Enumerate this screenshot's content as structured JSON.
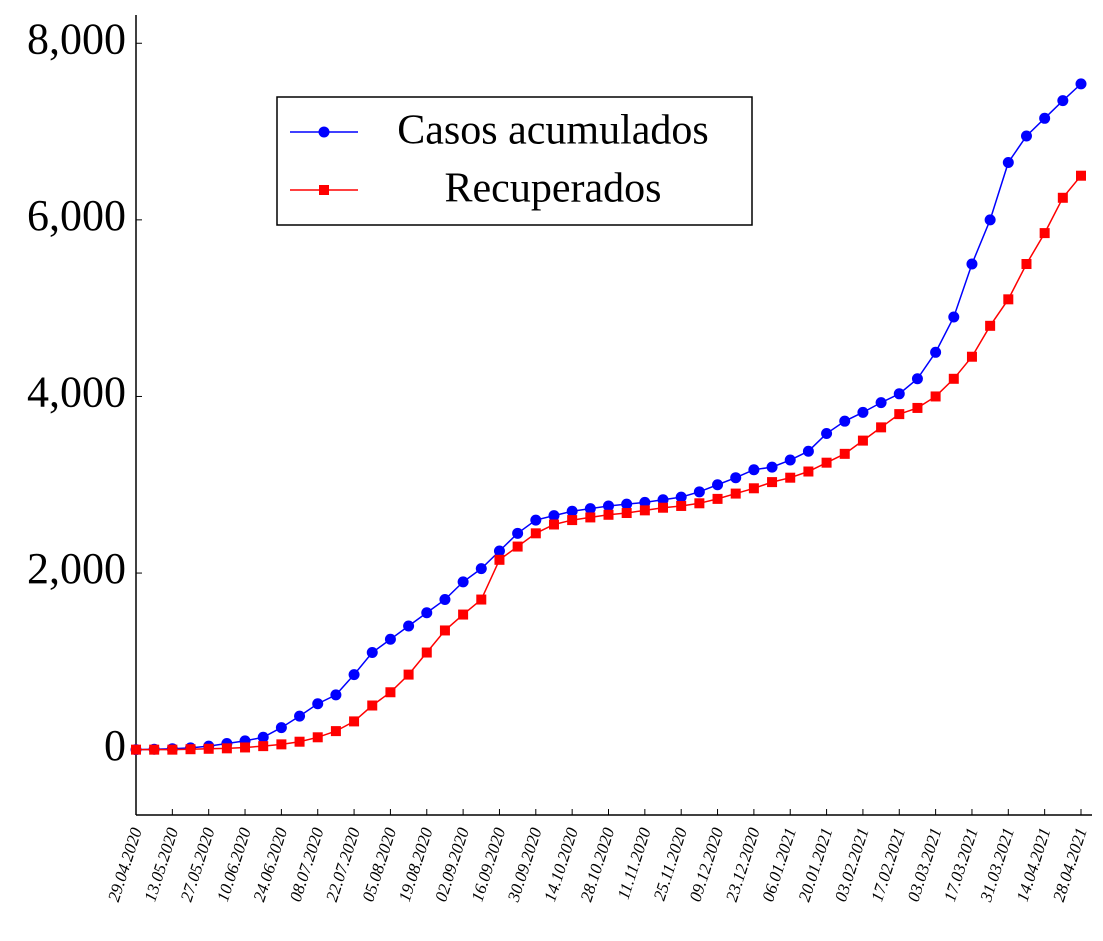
{
  "chart_data": {
    "type": "line",
    "categories": [
      "29.04.2020",
      null,
      "13.05.2020",
      null,
      "27.05.2020",
      null,
      "10.06.2020",
      null,
      "24.06.2020",
      null,
      "08.07.2020",
      null,
      "22.07.2020",
      null,
      "05.08.2020",
      null,
      "19.08.2020",
      null,
      "02.09.2020",
      null,
      "16.09.2020",
      null,
      "30.09.2020",
      null,
      "14.10.2020",
      null,
      "28.10.2020",
      null,
      "11.11.2020",
      null,
      "25.11.2020",
      null,
      "09.12.2020",
      null,
      "23.12.2020",
      null,
      "06.01.2021",
      null,
      "20.01.2021",
      null,
      "03.02.2021",
      null,
      "17.02.2021",
      null,
      "03.03.2021",
      null,
      "17.03.2021",
      null,
      "31.03.2021",
      null,
      "14.04.2021",
      null,
      "28.04.2021"
    ],
    "series": [
      {
        "name": "Casos acumulados",
        "color": "#0000ff",
        "marker": "circle",
        "values": [
          0,
          5,
          10,
          20,
          40,
          70,
          100,
          140,
          250,
          380,
          520,
          620,
          850,
          1100,
          1250,
          1400,
          1550,
          1700,
          1900,
          2050,
          2250,
          2450,
          2600,
          2650,
          2700,
          2730,
          2760,
          2780,
          2800,
          2830,
          2860,
          2920,
          3000,
          3080,
          3170,
          3200,
          3280,
          3380,
          3580,
          3720,
          3820,
          3930,
          4030,
          4200,
          4500,
          4900,
          5500,
          6000,
          6650,
          6950,
          7150,
          7350,
          7540
        ]
      },
      {
        "name": "Recuperados",
        "color": "#ff0000",
        "marker": "square",
        "values": [
          0,
          0,
          0,
          5,
          10,
          15,
          25,
          40,
          60,
          90,
          140,
          210,
          320,
          500,
          650,
          850,
          1100,
          1350,
          1530,
          1700,
          2150,
          2300,
          2450,
          2550,
          2600,
          2630,
          2660,
          2680,
          2710,
          2740,
          2760,
          2790,
          2840,
          2900,
          2960,
          3030,
          3080,
          3150,
          3250,
          3350,
          3500,
          3650,
          3800,
          3870,
          4000,
          4200,
          4450,
          4800,
          5100,
          5500,
          5850,
          6250,
          6500
        ]
      }
    ],
    "ylim": [
      -740,
      8320
    ],
    "yticks": [
      {
        "value": 0,
        "label": "0"
      },
      {
        "value": 2000,
        "label": "2,000"
      },
      {
        "value": 4000,
        "label": "4,000"
      },
      {
        "value": 6000,
        "label": "6,000"
      },
      {
        "value": 8000,
        "label": "8,000"
      }
    ],
    "grid": false,
    "legend": "upper left"
  }
}
